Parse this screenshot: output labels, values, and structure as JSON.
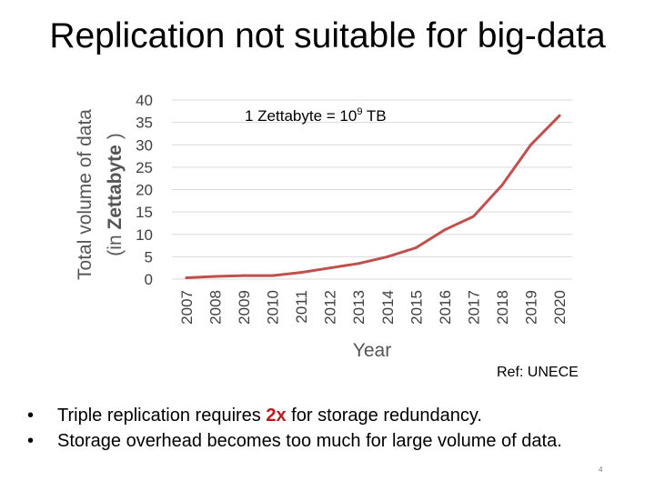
{
  "slide": {
    "title": "Replication not suitable for big-data",
    "reference": "Ref: UNECE",
    "page_number": "4",
    "bullets": [
      {
        "marker": "•",
        "before": "Triple replication requires ",
        "highlight": "2x",
        "after": " for storage redundancy."
      },
      {
        "marker": "•",
        "before": "Storage overhead becomes too much for large volume of data.",
        "highlight": "",
        "after": ""
      }
    ],
    "colors": {
      "highlight": "#c0171d",
      "line": "#c0504d",
      "grid": "#d9d9d9"
    }
  },
  "chart_data": {
    "type": "line",
    "title": "",
    "annotation": {
      "prefix": "1 Zettabyte = 10",
      "superscript": "9",
      "suffix": " TB"
    },
    "xlabel": "Year",
    "ylabel_line1": "Total volume of data",
    "ylabel_line2_prefix": "(in ",
    "ylabel_line2_bold": "Zettabyte",
    "ylabel_line2_suffix": " )",
    "categories": [
      "2007",
      "2008",
      "2009",
      "2010",
      "2011",
      "2012",
      "2013",
      "2014",
      "2015",
      "2016",
      "2017",
      "2018",
      "2019",
      "2020"
    ],
    "series": [
      {
        "name": "Total volume of data",
        "values": [
          0.3,
          0.6,
          0.8,
          0.8,
          1.5,
          2.5,
          3.5,
          5,
          7,
          11,
          14,
          21,
          30,
          36.5
        ]
      }
    ],
    "ylim": [
      0,
      40
    ],
    "yticks": [
      0,
      5,
      10,
      15,
      20,
      25,
      30,
      35,
      40
    ],
    "grid": true,
    "legend": "none"
  }
}
